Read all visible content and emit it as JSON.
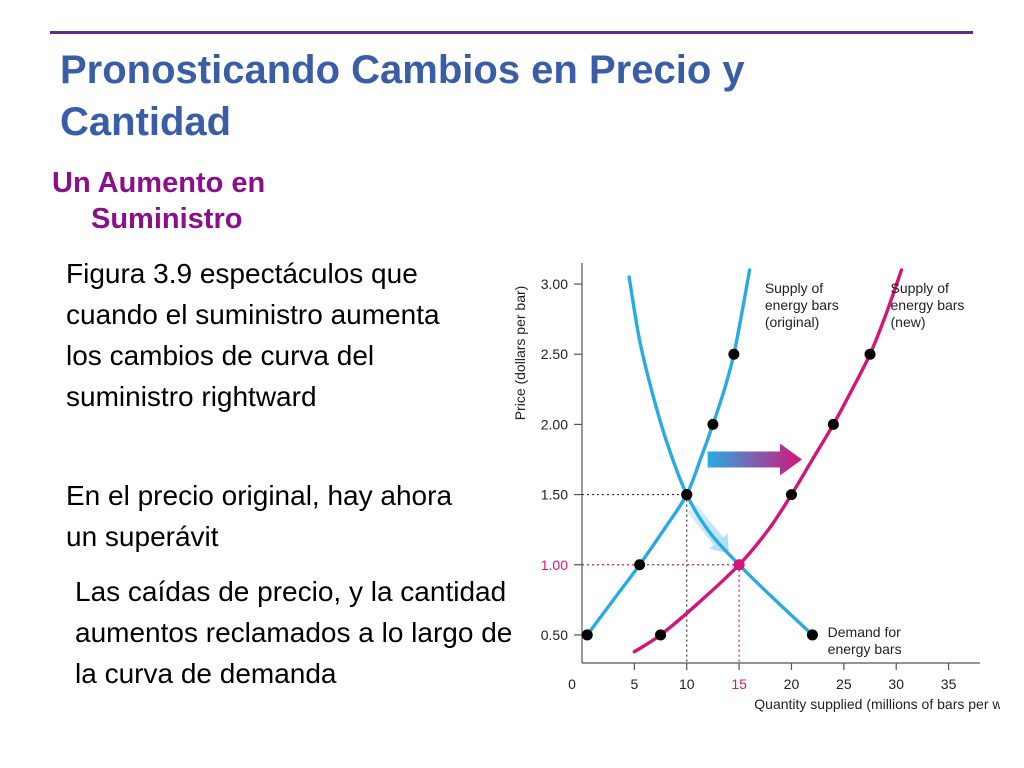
{
  "slide": {
    "title_line1": "Pronosticando Cambios en Precio y",
    "title_line2": "Cantidad",
    "subhead_line1": "Un Aumento en",
    "subhead_line2": "Suministro",
    "para1": "Figura 3.9 espectáculos que cuando el suministro aumenta los cambios de curva del suministro rightward",
    "para2": "En el precio original, hay ahora un superávit",
    "para3": "Las caídas de precio, y la cantidad aumentos reclamados a lo largo de la curva de demanda"
  },
  "colors": {
    "title": "#3a5da8",
    "subhead": "#8b0f8b",
    "rule": "#5b2d8e",
    "supply_original": "#29abe2",
    "supply_new": "#d4147a",
    "demand": "#29abe2",
    "highlight_tick": "#d4147a"
  },
  "chart_data": {
    "type": "line",
    "ylabel": "Price (dollars per bar)",
    "xlabel": "Quantity supplied (millions of bars per week)",
    "xlim": [
      0,
      38
    ],
    "ylim": [
      0.3,
      3.15
    ],
    "x_ticks": [
      {
        "value": 0,
        "label": "0"
      },
      {
        "value": 5,
        "label": "5"
      },
      {
        "value": 10,
        "label": "10"
      },
      {
        "value": 15,
        "label": "15",
        "highlight": true
      },
      {
        "value": 20,
        "label": "20"
      },
      {
        "value": 25,
        "label": "25"
      },
      {
        "value": 30,
        "label": "30"
      },
      {
        "value": 35,
        "label": "35"
      }
    ],
    "y_ticks": [
      {
        "value": 0.5,
        "label": "0.50"
      },
      {
        "value": 1.0,
        "label": "1.00",
        "highlight": true
      },
      {
        "value": 1.5,
        "label": "1.50"
      },
      {
        "value": 2.0,
        "label": "2.00"
      },
      {
        "value": 2.5,
        "label": "2.50"
      },
      {
        "value": 3.0,
        "label": "3.00"
      }
    ],
    "series": [
      {
        "key": "supply_original",
        "name": "Supply of energy bars (original)",
        "label_lines": [
          "Supply of",
          "energy bars",
          "(original)"
        ],
        "x": [
          0.5,
          5.5,
          10,
          12.5,
          14.5
        ],
        "y": [
          0.5,
          1.0,
          1.5,
          2.0,
          2.5
        ],
        "curve_x": [
          0.5,
          3,
          5.5,
          8,
          10,
          11.3,
          12.5,
          13.6,
          14.5,
          15.4,
          16
        ],
        "curve_y": [
          0.5,
          0.75,
          1.0,
          1.27,
          1.5,
          1.75,
          2.0,
          2.25,
          2.5,
          2.85,
          3.1
        ]
      },
      {
        "key": "supply_new",
        "name": "Supply of energy bars (new)",
        "label_lines": [
          "Supply of",
          "energy bars",
          "(new)"
        ],
        "x": [
          7.5,
          15,
          20,
          24,
          27.5
        ],
        "y": [
          0.5,
          1.0,
          1.5,
          2.0,
          2.5
        ],
        "curve_x": [
          5,
          7.5,
          11,
          15,
          17.8,
          20,
          22,
          24,
          25.8,
          27.5,
          29,
          30.5
        ],
        "curve_y": [
          0.38,
          0.5,
          0.72,
          1.0,
          1.25,
          1.5,
          1.75,
          2.0,
          2.25,
          2.5,
          2.78,
          3.1
        ]
      },
      {
        "key": "demand",
        "name": "Demand for energy bars",
        "label_lines": [
          "Demand for",
          "energy bars"
        ],
        "x": [
          10,
          15,
          22
        ],
        "y": [
          1.5,
          1.0,
          0.5
        ],
        "curve_x": [
          4.5,
          5.5,
          6.8,
          8.2,
          10,
          12.2,
          15,
          18,
          22
        ],
        "curve_y": [
          3.05,
          2.6,
          2.2,
          1.85,
          1.5,
          1.23,
          1.0,
          0.78,
          0.5
        ]
      }
    ],
    "original_equilibrium": {
      "x": 10,
      "y": 1.5
    },
    "new_equilibrium": {
      "x": 15,
      "y": 1.0
    },
    "shift_arrow": {
      "from": {
        "x": 12,
        "y": 1.75
      },
      "to": {
        "x": 21,
        "y": 1.75
      }
    },
    "movement_arrow": {
      "from": {
        "x": 10.5,
        "y": 1.4
      },
      "to": {
        "x": 14,
        "y": 1.08
      }
    }
  }
}
